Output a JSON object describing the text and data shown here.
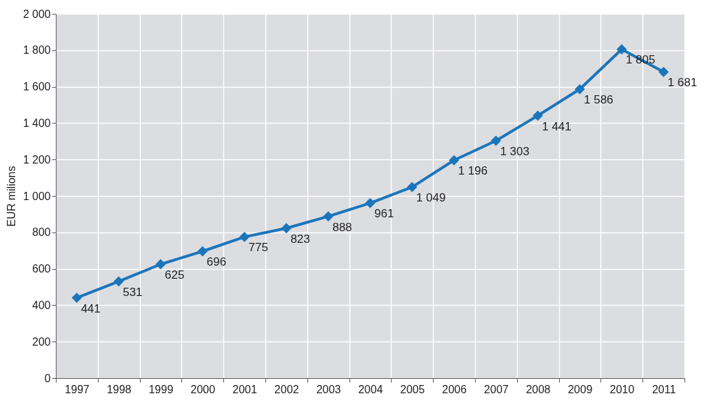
{
  "chart_data": {
    "type": "line",
    "ylabel": "EUR milions",
    "categories": [
      "1997",
      "1998",
      "1999",
      "2000",
      "2001",
      "2002",
      "2003",
      "2004",
      "2005",
      "2006",
      "2007",
      "2008",
      "2009",
      "2010",
      "2011"
    ],
    "series": [
      {
        "color": "#1b75bb",
        "values": [
          441,
          531,
          625,
          696,
          775,
          823,
          888,
          961,
          1049,
          1196,
          1303,
          1441,
          1586,
          1805,
          1681
        ],
        "value_labels": [
          "441",
          "531",
          "625",
          "696",
          "775",
          "823",
          "888",
          "961",
          "1 049",
          "1 196",
          "1 303",
          "1 441",
          "1 586",
          "1 805",
          "1 681"
        ]
      }
    ],
    "ylim": [
      0,
      2000
    ],
    "yticks": [
      0,
      200,
      400,
      600,
      800,
      {
        "value": 1000,
        "label": "1 000"
      },
      {
        "value": 1200,
        "label": "1 200"
      },
      {
        "value": 1400,
        "label": "1 400"
      },
      {
        "value": 1600,
        "label": "1 600"
      },
      {
        "value": 1800,
        "label": "1 800"
      },
      {
        "value": 2000,
        "label": "2 000"
      }
    ],
    "grid": true,
    "marker": "diamond",
    "line_style": "solid"
  }
}
